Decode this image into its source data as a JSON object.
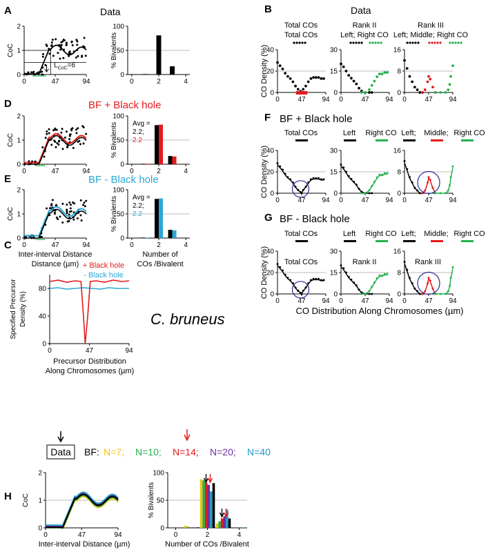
{
  "figure": {
    "species": "C. bruneus",
    "titles": {
      "A": "Data",
      "B": "Data",
      "D": "BF + Black hole",
      "E": "BF - Black hole",
      "F": "BF + Black hole",
      "G": "BF - Black hole"
    },
    "panel_letters": [
      "A",
      "B",
      "C",
      "D",
      "E",
      "F",
      "G",
      "H"
    ],
    "lcoc_label": {
      "main": "L",
      "sub": "CoC",
      "suffix": "=6"
    },
    "avg_label": {
      "text": "Avg =",
      "val1": "2.2;",
      "val2": "2.2"
    },
    "legend_B": {
      "col1": [
        "Total COs",
        "Total COs"
      ],
      "col2": [
        "Rank II",
        "Left; Right CO"
      ],
      "col3": [
        "Rank III",
        "Left; Middle; Right CO"
      ]
    },
    "legend_FG": {
      "col1": "Total COs",
      "col2": [
        "Left",
        "Right CO"
      ],
      "col3": [
        "Left;",
        "Middle;",
        "Right CO"
      ]
    },
    "inset_G": {
      "col1": "Total COs",
      "col2": "Rank II",
      "col3": "Rank III"
    },
    "bottom_xlabel": "CO Distribution Along Chromosomes (µm)",
    "H_header": {
      "data_box": "Data",
      "bf_label": "BF:",
      "n_labels": [
        "N=7;",
        "N=10;",
        "N=14;",
        "N=20;",
        "N=40"
      ]
    },
    "colors": {
      "red": "#e31a1c",
      "blue": "#2aa7d6",
      "green": "#22b14c",
      "yellow": "#f2c511",
      "purple": "#7030a0",
      "teal": "#1f9bc7",
      "navy": "#2a2a9a",
      "gray": "#bbbbbb"
    }
  },
  "chart_data": [
    {
      "id": "A-coc",
      "type": "scatter",
      "xlabel": "",
      "ylabel": "CoC",
      "xticks": [
        0,
        47,
        94
      ],
      "yticks": [
        0,
        1,
        2
      ],
      "xlim": [
        0,
        94
      ],
      "ylim": [
        0,
        2
      ],
      "series": [
        {
          "x": [
            0,
            5,
            10,
            15,
            20,
            25,
            30,
            33,
            36,
            38,
            40,
            42,
            45,
            47,
            50,
            53,
            56,
            60,
            63,
            66,
            70,
            73,
            76,
            80,
            84,
            88,
            92
          ],
          "y": [
            0,
            0,
            0,
            0.05,
            0.1,
            0.2,
            0.6,
            1.2,
            1.5,
            1.3,
            1.4,
            1.6,
            1.0,
            1.4,
            1.8,
            1.3,
            1.2,
            0.9,
            1.1,
            1.4,
            1.0,
            1.3,
            0.8,
            1.2,
            0.9,
            0.7,
            1.3
          ]
        }
      ]
    },
    {
      "id": "A-bars",
      "type": "bar",
      "ylabel": "% Bivalents",
      "xticks": [
        0,
        2,
        4
      ],
      "yticks": [
        0,
        50,
        100
      ],
      "ylim": [
        0,
        100
      ],
      "categories": [
        1,
        2,
        3,
        4
      ],
      "values": [
        1,
        81,
        17,
        0
      ]
    },
    {
      "id": "B-total",
      "type": "scatter",
      "ylabel": "CO Density (%)",
      "xticks": [
        0,
        47,
        94
      ],
      "yticks": [
        0,
        20,
        40
      ],
      "ylim": [
        0,
        40
      ],
      "series": [
        {
          "x": [
            0,
            5,
            10,
            15,
            20,
            25,
            30,
            35,
            40,
            45,
            47,
            50,
            55,
            60,
            65,
            70,
            75,
            80,
            85,
            90
          ],
          "y": [
            28,
            25,
            22,
            18,
            15,
            13,
            10,
            6,
            3,
            1,
            0,
            3,
            6,
            10,
            13,
            14,
            14,
            14,
            13,
            13
          ]
        }
      ]
    },
    {
      "id": "B-rank2",
      "type": "scatter",
      "yticks": [
        0,
        15,
        30
      ],
      "ylim": [
        0,
        30
      ],
      "series": [
        {
          "name": "Left",
          "x": [
            0,
            5,
            10,
            15,
            20,
            25,
            30,
            35,
            40,
            47,
            55,
            60
          ],
          "y": [
            20,
            18,
            15,
            12,
            10,
            8,
            6,
            3,
            1,
            0,
            0,
            0
          ]
        },
        {
          "name": "Right CO",
          "x": [
            40,
            47,
            55,
            60,
            65,
            70,
            75,
            80,
            85,
            90
          ],
          "y": [
            0,
            0,
            2,
            5,
            8,
            11,
            13,
            13,
            14,
            14
          ]
        }
      ]
    },
    {
      "id": "B-rank3",
      "type": "scatter",
      "yticks": [
        0,
        8,
        16
      ],
      "ylim": [
        0,
        16
      ],
      "series": [
        {
          "name": "Left",
          "x": [
            0,
            5,
            10,
            15,
            20,
            25,
            30,
            35
          ],
          "y": [
            12,
            9,
            6,
            4,
            2,
            1,
            0,
            0
          ]
        },
        {
          "name": "Middle",
          "x": [
            35,
            40,
            45,
            47,
            50,
            55,
            60
          ],
          "y": [
            0,
            1,
            4,
            6,
            5,
            2,
            0
          ]
        },
        {
          "name": "Right CO",
          "x": [
            60,
            70,
            80,
            85,
            88,
            90,
            94
          ],
          "y": [
            0,
            0,
            0,
            1,
            3,
            6,
            10
          ]
        }
      ]
    },
    {
      "id": "C",
      "type": "line",
      "ylabel": "Specified Precursor Density (%)",
      "xlabel": "Precursor Distribution Along Chromosomes (µm)",
      "xticks": [
        0,
        47,
        94
      ],
      "yticks": [
        0,
        40,
        80
      ],
      "ylim": [
        0,
        100
      ],
      "series": [
        {
          "name": "+ Black hole",
          "x": [
            0,
            10,
            20,
            30,
            37,
            40,
            42,
            45,
            48,
            55,
            65,
            75,
            85,
            94
          ],
          "y": [
            90,
            92,
            89,
            91,
            90,
            40,
            0,
            40,
            90,
            91,
            89,
            92,
            90,
            91
          ]
        },
        {
          "name": "- Black hole",
          "x": [
            0,
            10,
            20,
            30,
            40,
            50,
            60,
            70,
            80,
            94
          ],
          "y": [
            80,
            81,
            79,
            80,
            81,
            80,
            79,
            81,
            80,
            80
          ]
        }
      ]
    },
    {
      "id": "D-bars",
      "type": "bar",
      "ylabel": "% Bivalents",
      "xticks": [
        0,
        2,
        4
      ],
      "yticks": [
        0,
        50,
        100
      ],
      "ylim": [
        0,
        100
      ],
      "categories": [
        1,
        2,
        3,
        4
      ],
      "series": [
        {
          "name": "Data",
          "values": [
            1,
            81,
            17,
            0
          ]
        },
        {
          "name": "BF",
          "values": [
            1,
            82,
            16,
            0
          ]
        }
      ]
    },
    {
      "id": "E-bars",
      "type": "bar",
      "ylabel": "% Bivalents",
      "xlabel": "Number of COs /Bivalent",
      "xticks": [
        0,
        2,
        4
      ],
      "yticks": [
        0,
        50,
        100
      ],
      "ylim": [
        0,
        100
      ],
      "categories": [
        1,
        2,
        3,
        4
      ],
      "series": [
        {
          "name": "Data",
          "values": [
            1,
            81,
            17,
            0
          ]
        },
        {
          "name": "BF",
          "values": [
            1,
            82,
            16,
            0
          ]
        }
      ]
    },
    {
      "id": "E-coc",
      "type": "line",
      "xlabel": "Inter-interval Distance (µm)",
      "ylabel": "CoC"
    },
    {
      "id": "H-bars",
      "type": "bar",
      "ylabel": "% Bivalents",
      "xlabel": "Number of COs /Bivalent",
      "xticks": [
        0,
        2,
        4
      ],
      "yticks": [
        0,
        50,
        100
      ],
      "ylim": [
        0,
        100
      ],
      "categories": [
        1,
        2,
        3,
        4
      ],
      "series": [
        {
          "name": "N=7",
          "values": [
            4,
            88,
            8,
            0
          ]
        },
        {
          "name": "N=10",
          "values": [
            2,
            86,
            12,
            0
          ]
        },
        {
          "name": "N=14",
          "values": [
            1,
            82,
            17,
            0
          ]
        },
        {
          "name": "N=20",
          "values": [
            1,
            78,
            21,
            0
          ]
        },
        {
          "name": "N=40",
          "values": [
            0,
            66,
            33,
            1
          ]
        },
        {
          "name": "Data",
          "values": [
            1,
            81,
            17,
            0
          ]
        }
      ]
    },
    {
      "id": "H-coc",
      "type": "line",
      "xlabel": "Inter-interval Distance (µm)",
      "ylabel": "CoC",
      "xticks": [
        0,
        47,
        94
      ],
      "yticks": [
        0,
        1,
        2
      ],
      "ylim": [
        0,
        2
      ]
    }
  ]
}
